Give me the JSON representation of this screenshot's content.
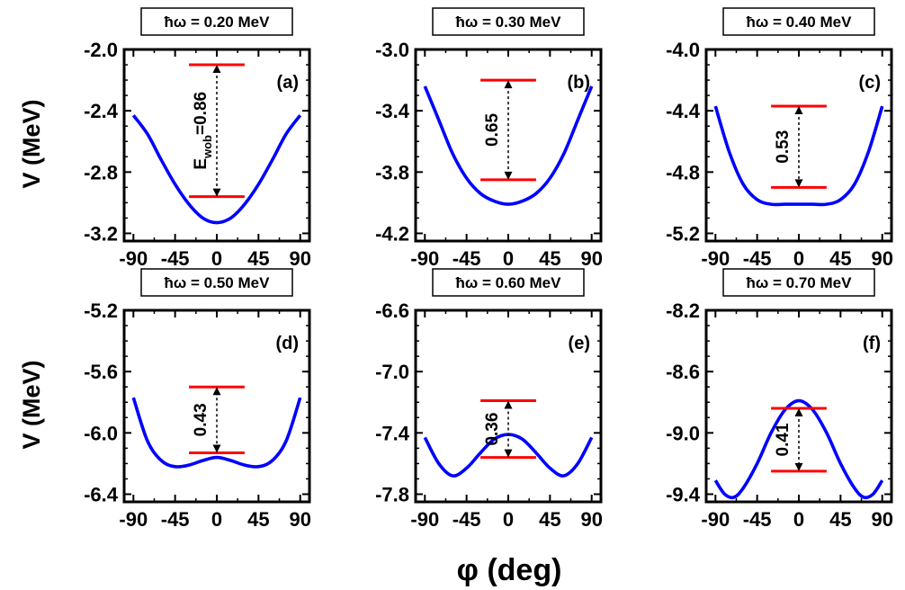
{
  "chart_data": [
    {
      "type": "line",
      "title": "ħω = 0.20 MeV",
      "panel_label": "(a)",
      "xlabel": "φ (deg)",
      "ylabel": "V (MeV)",
      "xlim": [
        -100,
        100
      ],
      "ylim": [
        -3.25,
        -2.0
      ],
      "xticks": [
        -90,
        -45,
        0,
        45,
        90
      ],
      "yticks": [
        -2.0,
        -2.4,
        -2.8,
        -3.2
      ],
      "ytick_labels": [
        "-2.0",
        "-2.4",
        "-2.8",
        "-3.2"
      ],
      "series": [
        {
          "x": [
            -90,
            -75,
            -60,
            -45,
            -30,
            -15,
            0,
            15,
            30,
            45,
            60,
            75,
            90
          ],
          "y": [
            -2.43,
            -2.55,
            -2.72,
            -2.88,
            -3.01,
            -3.1,
            -3.13,
            -3.1,
            -3.01,
            -2.88,
            -2.72,
            -2.55,
            -2.43
          ],
          "color": "#0000ff"
        }
      ],
      "levels": [
        {
          "y": -2.1,
          "x_range": [
            -30,
            30
          ],
          "color": "#ff0000"
        },
        {
          "y": -2.96,
          "x_range": [
            -30,
            30
          ],
          "color": "#ff0000"
        }
      ],
      "annotation": {
        "main": "E",
        "sub": "wob",
        "value": "=0.86",
        "y_range": [
          -2.1,
          -2.96
        ]
      }
    },
    {
      "type": "line",
      "title": "ħω = 0.30 MeV",
      "panel_label": "(b)",
      "xlabel": "φ (deg)",
      "ylabel": "V (MeV)",
      "xlim": [
        -100,
        100
      ],
      "ylim": [
        -4.25,
        -3.0
      ],
      "xticks": [
        -90,
        -45,
        0,
        45,
        90
      ],
      "yticks": [
        -3.0,
        -3.4,
        -3.8,
        -4.2
      ],
      "ytick_labels": [
        "-3.0",
        "-3.4",
        "-3.8",
        "-4.2"
      ],
      "series": [
        {
          "x": [
            -90,
            -75,
            -60,
            -45,
            -30,
            -15,
            0,
            15,
            30,
            45,
            60,
            75,
            90
          ],
          "y": [
            -3.24,
            -3.46,
            -3.68,
            -3.84,
            -3.94,
            -3.99,
            -4.01,
            -3.99,
            -3.94,
            -3.84,
            -3.68,
            -3.46,
            -3.24
          ],
          "color": "#0000ff"
        }
      ],
      "levels": [
        {
          "y": -3.2,
          "x_range": [
            -30,
            30
          ],
          "color": "#ff0000"
        },
        {
          "y": -3.85,
          "x_range": [
            -30,
            30
          ],
          "color": "#ff0000"
        }
      ],
      "annotation": {
        "main": "",
        "sub": "",
        "value": "0.65",
        "y_range": [
          -3.2,
          -3.85
        ]
      }
    },
    {
      "type": "line",
      "title": "ħω = 0.40 MeV",
      "panel_label": "(c)",
      "xlabel": "φ (deg)",
      "ylabel": "V (MeV)",
      "xlim": [
        -100,
        100
      ],
      "ylim": [
        -5.25,
        -4.0
      ],
      "xticks": [
        -90,
        -45,
        0,
        45,
        90
      ],
      "yticks": [
        -4.0,
        -4.4,
        -4.8,
        -5.2
      ],
      "ytick_labels": [
        "-4.0",
        "-4.4",
        "-4.8",
        "-5.2"
      ],
      "series": [
        {
          "x": [
            -90,
            -75,
            -60,
            -45,
            -30,
            -15,
            0,
            15,
            30,
            45,
            60,
            75,
            90
          ],
          "y": [
            -4.37,
            -4.67,
            -4.88,
            -4.98,
            -5.01,
            -5.01,
            -5.01,
            -5.01,
            -5.01,
            -4.98,
            -4.88,
            -4.67,
            -4.37
          ],
          "color": "#0000ff"
        }
      ],
      "levels": [
        {
          "y": -4.37,
          "x_range": [
            -30,
            30
          ],
          "color": "#ff0000"
        },
        {
          "y": -4.9,
          "x_range": [
            -30,
            30
          ],
          "color": "#ff0000"
        }
      ],
      "annotation": {
        "main": "",
        "sub": "",
        "value": "0.53",
        "y_range": [
          -4.37,
          -4.9
        ]
      }
    },
    {
      "type": "line",
      "title": "ħω = 0.50 MeV",
      "panel_label": "(d)",
      "xlabel": "φ (deg)",
      "ylabel": "V (MeV)",
      "xlim": [
        -100,
        100
      ],
      "ylim": [
        -6.45,
        -5.2
      ],
      "xticks": [
        -90,
        -45,
        0,
        45,
        90
      ],
      "yticks": [
        -5.2,
        -5.6,
        -6.0,
        -6.4
      ],
      "ytick_labels": [
        "-5.2",
        "-5.6",
        "-6.0",
        "-6.4"
      ],
      "series": [
        {
          "x": [
            -90,
            -75,
            -60,
            -45,
            -30,
            -15,
            0,
            15,
            30,
            45,
            60,
            75,
            90
          ],
          "y": [
            -5.77,
            -6.05,
            -6.18,
            -6.22,
            -6.21,
            -6.18,
            -6.16,
            -6.18,
            -6.21,
            -6.22,
            -6.18,
            -6.05,
            -5.77
          ],
          "color": "#0000ff"
        }
      ],
      "levels": [
        {
          "y": -5.7,
          "x_range": [
            -30,
            30
          ],
          "color": "#ff0000"
        },
        {
          "y": -6.13,
          "x_range": [
            -30,
            30
          ],
          "color": "#ff0000"
        }
      ],
      "annotation": {
        "main": "",
        "sub": "",
        "value": "0.43",
        "y_range": [
          -5.7,
          -6.13
        ]
      }
    },
    {
      "type": "line",
      "title": "ħω = 0.60 MeV",
      "panel_label": "(e)",
      "xlabel": "φ (deg)",
      "ylabel": "V (MeV)",
      "xlim": [
        -100,
        100
      ],
      "ylim": [
        -7.85,
        -6.6
      ],
      "xticks": [
        -90,
        -45,
        0,
        45,
        90
      ],
      "yticks": [
        -6.6,
        -7.0,
        -7.4,
        -7.8
      ],
      "ytick_labels": [
        "-6.6",
        "-7.0",
        "-7.4",
        "-7.8"
      ],
      "series": [
        {
          "x": [
            -90,
            -75,
            -60,
            -45,
            -30,
            -15,
            0,
            15,
            30,
            45,
            60,
            75,
            90
          ],
          "y": [
            -7.43,
            -7.6,
            -7.68,
            -7.63,
            -7.53,
            -7.44,
            -7.41,
            -7.44,
            -7.53,
            -7.63,
            -7.68,
            -7.6,
            -7.43
          ],
          "color": "#0000ff"
        }
      ],
      "levels": [
        {
          "y": -7.19,
          "x_range": [
            -30,
            30
          ],
          "color": "#ff0000"
        },
        {
          "y": -7.56,
          "x_range": [
            -30,
            30
          ],
          "color": "#ff0000"
        }
      ],
      "annotation": {
        "main": "",
        "sub": "",
        "value": "0.36",
        "y_range": [
          -7.19,
          -7.56
        ]
      }
    },
    {
      "type": "line",
      "title": "ħω = 0.70 MeV",
      "panel_label": "(f)",
      "xlabel": "φ (deg)",
      "ylabel": "V (MeV)",
      "xlim": [
        -100,
        100
      ],
      "ylim": [
        -9.45,
        -8.2
      ],
      "xticks": [
        -90,
        -45,
        0,
        45,
        90
      ],
      "yticks": [
        -8.2,
        -8.6,
        -9.0,
        -9.4
      ],
      "ytick_labels": [
        "-8.2",
        "-8.6",
        "-9.0",
        "-9.4"
      ],
      "series": [
        {
          "x": [
            -90,
            -80,
            -70,
            -60,
            -45,
            -30,
            -15,
            0,
            15,
            30,
            45,
            60,
            70,
            80,
            90
          ],
          "y": [
            -9.31,
            -9.4,
            -9.42,
            -9.36,
            -9.2,
            -9.0,
            -8.85,
            -8.79,
            -8.85,
            -9.0,
            -9.2,
            -9.36,
            -9.42,
            -9.4,
            -9.31
          ],
          "color": "#0000ff"
        }
      ],
      "levels": [
        {
          "y": -8.84,
          "x_range": [
            -30,
            30
          ],
          "color": "#ff0000"
        },
        {
          "y": -9.25,
          "x_range": [
            -30,
            30
          ],
          "color": "#ff0000"
        }
      ],
      "annotation": {
        "main": "",
        "sub": "",
        "value": "0.41",
        "y_range": [
          -8.84,
          -9.25
        ]
      }
    }
  ],
  "shared_labels": {
    "ylabel_top": "V (MeV)",
    "ylabel_bottom": "V (MeV)",
    "xlabel": "φ (deg)"
  }
}
